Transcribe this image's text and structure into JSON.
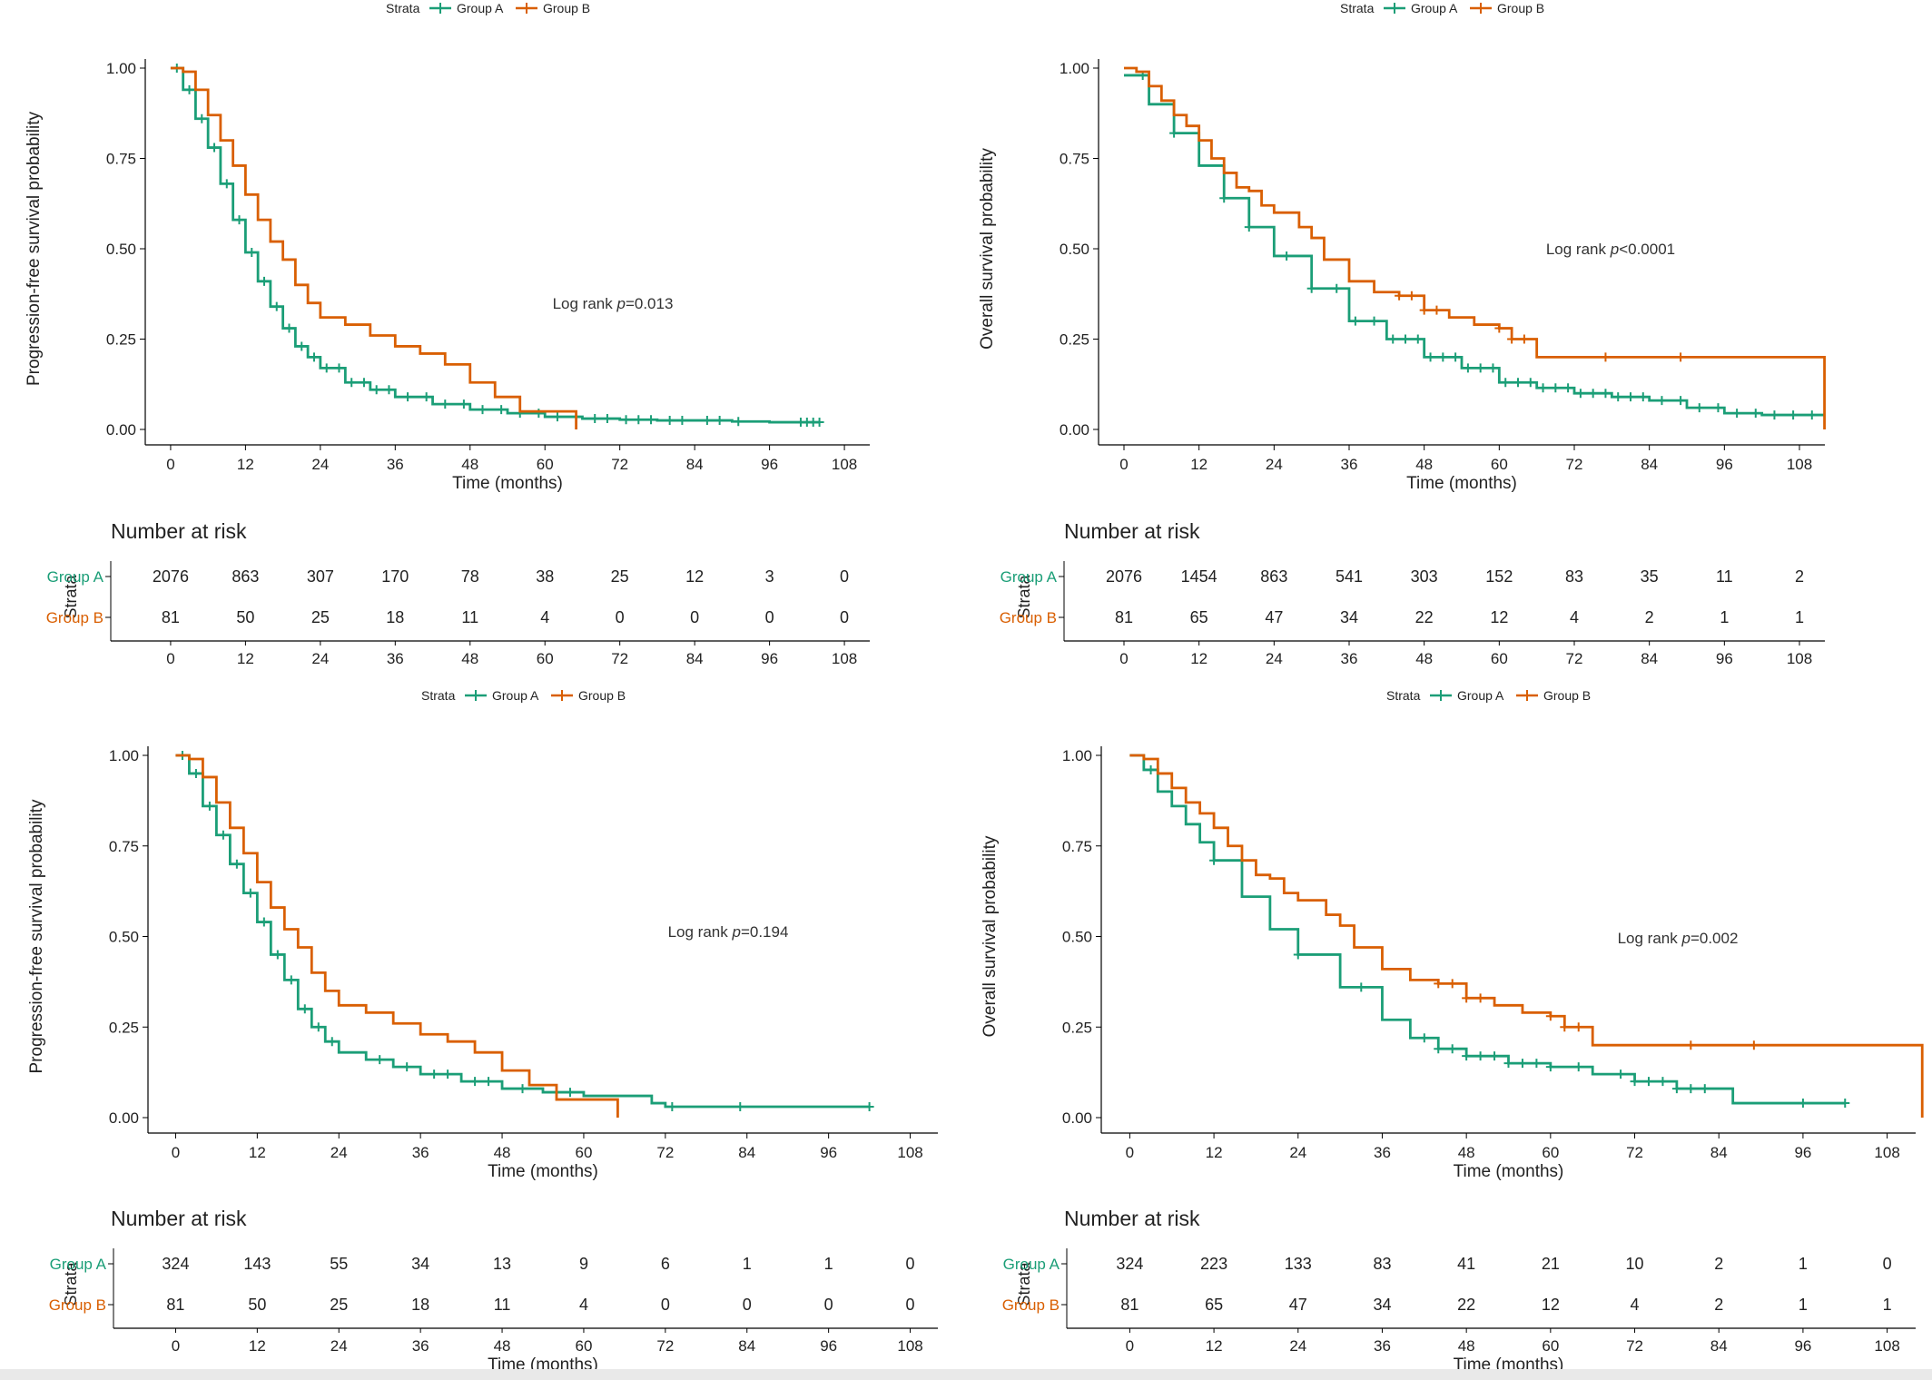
{
  "colors": {
    "group_a": "#1b9e77",
    "group_b": "#d95f02",
    "axis": "#000000",
    "text": "#222222"
  },
  "legend": {
    "title": "Strata",
    "items": [
      "Group A",
      "Group B"
    ]
  },
  "risk_table": {
    "title": "Number at risk",
    "strata_label": "Strata",
    "row_labels": [
      "Group A",
      "Group B"
    ]
  },
  "chart_data": [
    {
      "type": "line",
      "panel": "top-left",
      "ylabel": "Progression-free survival probability",
      "xlabel": "Time (months)",
      "xlim": [
        0,
        108
      ],
      "ylim": [
        0,
        1
      ],
      "x_ticks": [
        0,
        12,
        24,
        36,
        48,
        60,
        72,
        84,
        96,
        108
      ],
      "y_ticks": [
        "0.00",
        "0.25",
        "0.50",
        "0.75",
        "1.00"
      ],
      "annotation": {
        "prefix": "Log rank ",
        "p": "p",
        "value": "=0.013"
      },
      "legend_position": "top",
      "grid": false,
      "series": [
        {
          "name": "Group A",
          "x": [
            0,
            2,
            4,
            6,
            8,
            10,
            12,
            14,
            16,
            18,
            20,
            22,
            24,
            28,
            32,
            36,
            42,
            48,
            54,
            60,
            66,
            72,
            78,
            84,
            90,
            96,
            104
          ],
          "y": [
            1.0,
            0.94,
            0.86,
            0.78,
            0.68,
            0.58,
            0.49,
            0.41,
            0.34,
            0.28,
            0.23,
            0.2,
            0.17,
            0.13,
            0.11,
            0.09,
            0.07,
            0.055,
            0.045,
            0.035,
            0.03,
            0.027,
            0.025,
            0.025,
            0.022,
            0.02,
            0.02
          ],
          "censor_x": [
            1,
            3,
            5,
            7,
            9,
            11,
            13,
            15,
            17,
            19,
            21,
            23,
            25,
            27,
            29,
            31,
            33,
            35,
            38,
            41,
            44,
            47,
            50,
            53,
            56,
            59,
            62,
            68,
            70,
            73,
            75,
            77,
            80,
            82,
            86,
            88,
            91,
            101,
            102,
            103,
            104
          ]
        },
        {
          "name": "Group B",
          "x": [
            0,
            2,
            4,
            6,
            8,
            10,
            12,
            14,
            16,
            18,
            20,
            22,
            24,
            28,
            32,
            36,
            40,
            44,
            48,
            52,
            56,
            60,
            64,
            65
          ],
          "y": [
            1.0,
            0.99,
            0.94,
            0.87,
            0.8,
            0.73,
            0.65,
            0.58,
            0.52,
            0.47,
            0.4,
            0.35,
            0.31,
            0.29,
            0.26,
            0.23,
            0.21,
            0.18,
            0.13,
            0.09,
            0.05,
            0.05,
            0.05,
            0.0
          ],
          "censor_x": []
        }
      ],
      "risk": [
        [
          2076,
          863,
          307,
          170,
          78,
          38,
          25,
          12,
          3,
          0
        ],
        [
          81,
          50,
          25,
          18,
          11,
          4,
          0,
          0,
          0,
          0
        ]
      ]
    },
    {
      "type": "line",
      "panel": "top-right",
      "ylabel": "Overall survival probability",
      "xlabel": "Time (months)",
      "xlim": [
        0,
        108
      ],
      "ylim": [
        0,
        1
      ],
      "x_ticks": [
        0,
        12,
        24,
        36,
        48,
        60,
        72,
        84,
        96,
        108
      ],
      "y_ticks": [
        "0.00",
        "0.25",
        "0.50",
        "0.75",
        "1.00"
      ],
      "annotation": {
        "prefix": "Log rank ",
        "p": "p",
        "value": "<0.0001"
      },
      "legend_position": "top",
      "grid": false,
      "series": [
        {
          "name": "Group A",
          "x": [
            0,
            4,
            8,
            12,
            16,
            20,
            24,
            30,
            36,
            42,
            48,
            54,
            60,
            66,
            72,
            78,
            84,
            90,
            96,
            102,
            108,
            112
          ],
          "y": [
            0.98,
            0.9,
            0.82,
            0.73,
            0.64,
            0.56,
            0.48,
            0.39,
            0.3,
            0.25,
            0.2,
            0.17,
            0.13,
            0.115,
            0.1,
            0.09,
            0.08,
            0.06,
            0.045,
            0.04,
            0.04,
            0.04
          ],
          "censor_x": [
            3,
            8,
            16,
            20,
            26,
            30,
            34,
            37,
            40,
            43,
            45,
            47,
            49,
            51,
            53,
            55,
            57,
            59,
            61,
            63,
            65,
            67,
            69,
            71,
            73,
            75,
            77,
            79,
            81,
            83,
            86,
            89,
            92,
            95,
            98,
            101,
            104,
            107,
            110
          ]
        },
        {
          "name": "Group B",
          "x": [
            0,
            2,
            4,
            6,
            8,
            10,
            12,
            14,
            16,
            18,
            20,
            22,
            24,
            28,
            30,
            32,
            36,
            40,
            44,
            48,
            52,
            56,
            60,
            62,
            66,
            80,
            100,
            112,
            112
          ],
          "y": [
            1.0,
            0.99,
            0.95,
            0.91,
            0.87,
            0.84,
            0.8,
            0.75,
            0.71,
            0.67,
            0.66,
            0.62,
            0.6,
            0.56,
            0.53,
            0.47,
            0.41,
            0.38,
            0.37,
            0.33,
            0.31,
            0.29,
            0.28,
            0.25,
            0.2,
            0.2,
            0.2,
            0.2,
            0.0
          ],
          "censor_x": [
            44,
            46,
            48,
            50,
            60,
            62,
            64,
            77,
            89
          ]
        }
      ],
      "risk": [
        [
          2076,
          1454,
          863,
          541,
          303,
          152,
          83,
          35,
          11,
          2
        ],
        [
          81,
          65,
          47,
          34,
          22,
          12,
          4,
          2,
          1,
          1
        ]
      ]
    },
    {
      "type": "line",
      "panel": "bottom-left",
      "ylabel": "Progression-free survival probability",
      "xlabel": "Time (months)",
      "xlim": [
        0,
        108
      ],
      "ylim": [
        0,
        1
      ],
      "x_ticks": [
        0,
        12,
        24,
        36,
        48,
        60,
        72,
        84,
        96,
        108
      ],
      "y_ticks": [
        "0.00",
        "0.25",
        "0.50",
        "0.75",
        "1.00"
      ],
      "annotation": {
        "prefix": "Log rank ",
        "p": "p",
        "value": "=0.194"
      },
      "legend_position": "top",
      "grid": false,
      "series": [
        {
          "name": "Group A",
          "x": [
            0,
            2,
            4,
            6,
            8,
            10,
            12,
            14,
            16,
            18,
            20,
            22,
            24,
            28,
            32,
            36,
            42,
            48,
            54,
            60,
            66,
            70,
            72,
            84,
            102
          ],
          "y": [
            1.0,
            0.95,
            0.86,
            0.78,
            0.7,
            0.62,
            0.54,
            0.45,
            0.38,
            0.3,
            0.25,
            0.21,
            0.18,
            0.16,
            0.14,
            0.12,
            0.1,
            0.08,
            0.07,
            0.06,
            0.06,
            0.04,
            0.03,
            0.03,
            0.03
          ],
          "censor_x": [
            1,
            3,
            5,
            7,
            9,
            11,
            13,
            15,
            17,
            19,
            21,
            23,
            30,
            34,
            38,
            40,
            44,
            46,
            51,
            58,
            73,
            83,
            102
          ]
        },
        {
          "name": "Group B",
          "x": [
            0,
            2,
            4,
            6,
            8,
            10,
            12,
            14,
            16,
            18,
            20,
            22,
            24,
            28,
            32,
            36,
            40,
            44,
            48,
            52,
            56,
            60,
            64,
            65
          ],
          "y": [
            1.0,
            0.99,
            0.94,
            0.87,
            0.8,
            0.73,
            0.65,
            0.58,
            0.52,
            0.47,
            0.4,
            0.35,
            0.31,
            0.29,
            0.26,
            0.23,
            0.21,
            0.18,
            0.13,
            0.09,
            0.05,
            0.05,
            0.05,
            0.0
          ],
          "censor_x": []
        }
      ],
      "risk": [
        [
          324,
          143,
          55,
          34,
          13,
          9,
          6,
          1,
          1,
          0
        ],
        [
          81,
          50,
          25,
          18,
          11,
          4,
          0,
          0,
          0,
          0
        ]
      ]
    },
    {
      "type": "line",
      "panel": "bottom-right",
      "ylabel": "Overall survival probability",
      "xlabel": "Time (months)",
      "xlim": [
        0,
        108
      ],
      "ylim": [
        0,
        1
      ],
      "x_ticks": [
        0,
        12,
        24,
        36,
        48,
        60,
        72,
        84,
        96,
        108
      ],
      "y_ticks": [
        "0.00",
        "0.25",
        "0.50",
        "0.75",
        "1.00"
      ],
      "annotation": {
        "prefix": "Log rank ",
        "p": "p",
        "value": "=0.002"
      },
      "legend_position": "top",
      "grid": false,
      "series": [
        {
          "name": "Group A",
          "x": [
            0,
            2,
            4,
            6,
            8,
            10,
            12,
            16,
            20,
            24,
            30,
            36,
            40,
            44,
            48,
            54,
            60,
            66,
            72,
            78,
            84,
            86,
            102
          ],
          "y": [
            1.0,
            0.96,
            0.9,
            0.86,
            0.81,
            0.76,
            0.71,
            0.61,
            0.52,
            0.45,
            0.36,
            0.27,
            0.22,
            0.19,
            0.17,
            0.15,
            0.14,
            0.12,
            0.1,
            0.08,
            0.08,
            0.04,
            0.04
          ],
          "censor_x": [
            3,
            12,
            24,
            33,
            42,
            44,
            46,
            48,
            50,
            52,
            54,
            56,
            58,
            60,
            64,
            70,
            72,
            74,
            76,
            78,
            80,
            82,
            96,
            102
          ]
        },
        {
          "name": "Group B",
          "x": [
            0,
            2,
            4,
            6,
            8,
            10,
            12,
            14,
            16,
            18,
            20,
            22,
            24,
            28,
            30,
            32,
            36,
            40,
            44,
            48,
            52,
            56,
            60,
            62,
            66,
            80,
            100,
            113,
            113
          ],
          "y": [
            1.0,
            0.99,
            0.95,
            0.91,
            0.87,
            0.84,
            0.8,
            0.75,
            0.71,
            0.67,
            0.66,
            0.62,
            0.6,
            0.56,
            0.53,
            0.47,
            0.41,
            0.38,
            0.37,
            0.33,
            0.31,
            0.29,
            0.28,
            0.25,
            0.2,
            0.2,
            0.2,
            0.2,
            0.0
          ],
          "censor_x": [
            44,
            46,
            48,
            50,
            60,
            62,
            64,
            80,
            89
          ]
        }
      ],
      "risk": [
        [
          324,
          223,
          133,
          83,
          41,
          21,
          10,
          2,
          1,
          0
        ],
        [
          81,
          65,
          47,
          34,
          22,
          12,
          4,
          2,
          1,
          1
        ]
      ]
    }
  ]
}
